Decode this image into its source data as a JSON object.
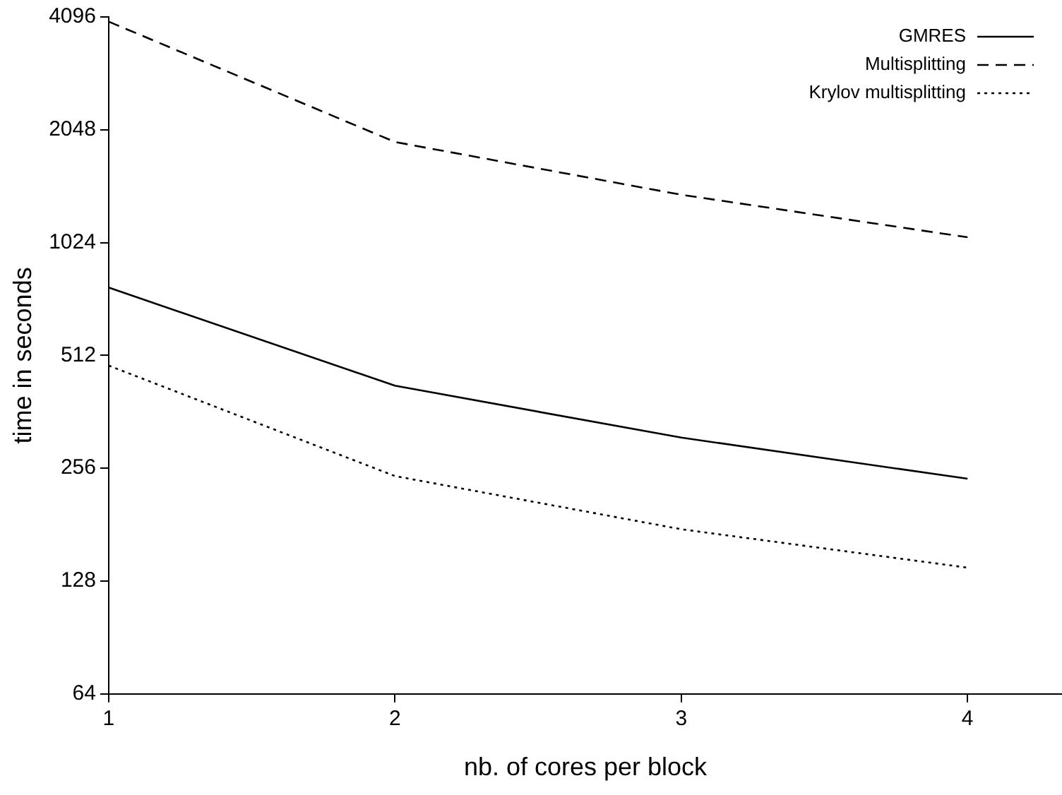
{
  "chart_data": {
    "type": "line",
    "xlabel": "nb. of cores per block",
    "ylabel": "time in seconds",
    "x": [
      1,
      2,
      3,
      4
    ],
    "series": [
      {
        "name": "GMRES",
        "color": "#000000",
        "line_style": "solid",
        "values": [
          777,
          425,
          309,
          240
        ]
      },
      {
        "name": "Multisplitting",
        "color": "#000000",
        "line_style": "dashed",
        "values": [
          3980,
          1900,
          1374,
          1058
        ]
      },
      {
        "name": "Krylov multisplitting",
        "color": "#000000",
        "line_style": "dotted",
        "values": [
          481,
          244,
          176,
          139
        ]
      }
    ],
    "log": "y",
    "xlim": [
      1,
      4.33
    ],
    "xticks": [
      1,
      2,
      3,
      4
    ],
    "ylim": [
      64,
      4096
    ],
    "yticks": [
      64,
      128,
      256,
      512,
      1024,
      2048,
      4096
    ],
    "grid": false,
    "legend": "top right",
    "marker": "none"
  }
}
